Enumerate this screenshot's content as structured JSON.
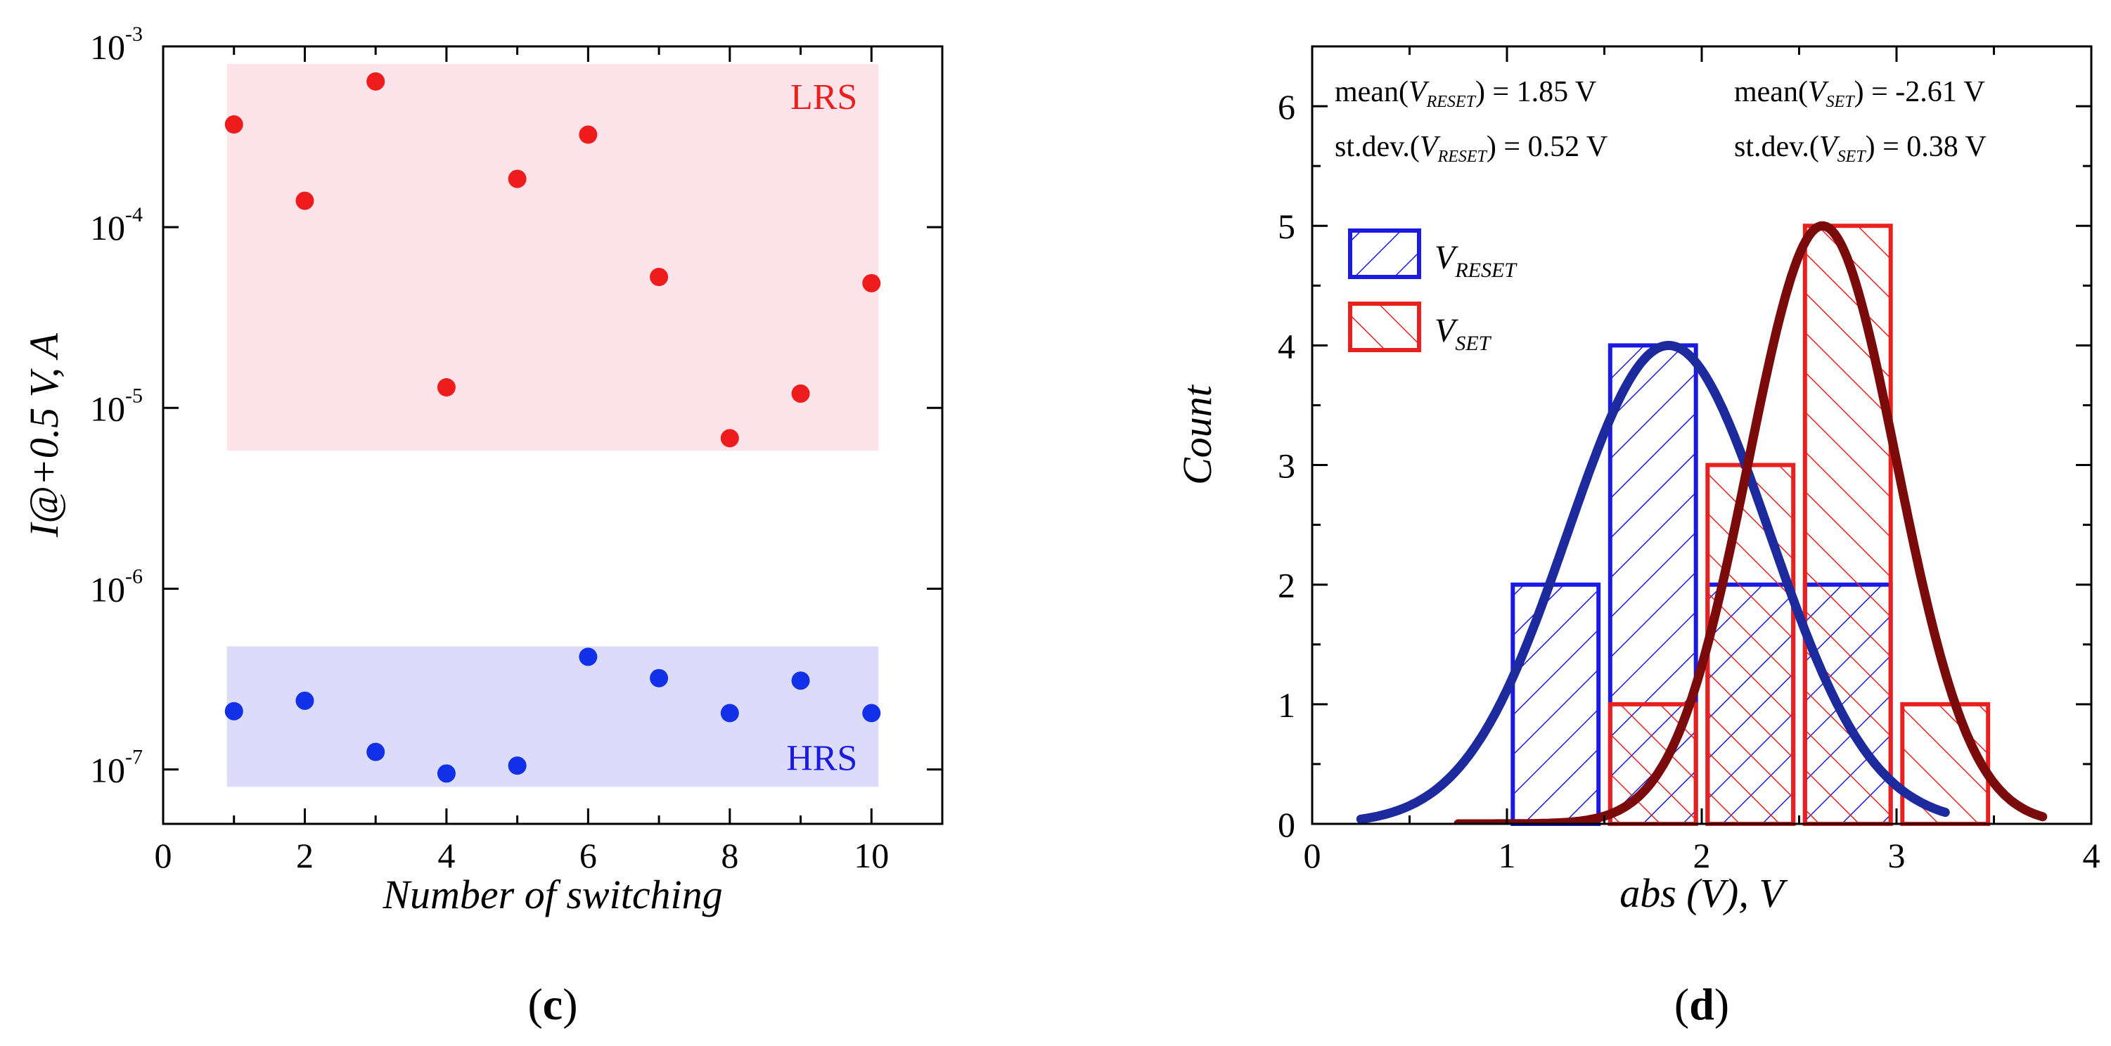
{
  "chart_data": [
    {
      "type": "scatter",
      "panel_label_open": "(",
      "panel_label_letter": "c",
      "panel_label_close": ")",
      "xlabel": "Number of switching",
      "ylabel": "I@+0.5 V, A",
      "xlim": [
        0,
        11
      ],
      "ylim": [
        5e-08,
        0.001
      ],
      "yscale": "log",
      "xticks": [
        "0",
        "2",
        "4",
        "6",
        "8",
        "10"
      ],
      "yticks": [
        {
          "base": "10",
          "exp": "-7"
        },
        {
          "base": "10",
          "exp": "-6"
        },
        {
          "base": "10",
          "exp": "-5"
        },
        {
          "base": "10",
          "exp": "-4"
        },
        {
          "base": "10",
          "exp": "-3"
        }
      ],
      "regions": [
        {
          "name": "LRS",
          "label": "LRS",
          "x_range": [
            0.9,
            10.1
          ],
          "y_range": [
            5.8e-06,
            0.0008
          ],
          "color": "#fde4ea",
          "label_color": "#e8211f"
        },
        {
          "name": "HRS",
          "label": "HRS",
          "x_range": [
            0.9,
            10.1
          ],
          "y_range": [
            8e-08,
            4.8e-07
          ],
          "color": "#dcdcfa",
          "label_color": "#1a1ae0"
        }
      ],
      "series": [
        {
          "name": "LRS",
          "color": "#ee1c1c",
          "x": [
            1,
            2,
            3,
            4,
            5,
            6,
            7,
            8,
            9,
            10
          ],
          "values": [
            0.00037,
            0.00014,
            0.00064,
            1.3e-05,
            0.000185,
            0.000325,
            5.3e-05,
            6.8e-06,
            1.2e-05,
            4.9e-05
          ]
        },
        {
          "name": "HRS",
          "color": "#1230e8",
          "x": [
            1,
            2,
            3,
            4,
            5,
            6,
            7,
            8,
            9,
            10
          ],
          "values": [
            2.1e-07,
            2.4e-07,
            1.25e-07,
            9.5e-08,
            1.05e-07,
            4.2e-07,
            3.2e-07,
            2.05e-07,
            3.1e-07,
            2.05e-07
          ]
        }
      ]
    },
    {
      "type": "bar",
      "panel_label_open": "(",
      "panel_label_letter": "d",
      "panel_label_close": ")",
      "xlabel": "abs (V), V",
      "ylabel": "Count",
      "xlim": [
        0,
        4
      ],
      "ylim": [
        0,
        6.5
      ],
      "xticks": [
        "0",
        "1",
        "2",
        "3",
        "4"
      ],
      "yticks": [
        "0",
        "1",
        "2",
        "3",
        "4",
        "5",
        "6"
      ],
      "bin_width": 0.5,
      "series": [
        {
          "name": "V_RESET",
          "legend_main": "V",
          "legend_sub": "RESET",
          "color": "#1a1ae0",
          "bin_starts": [
            1.0,
            1.5,
            2.0,
            2.5
          ],
          "values": [
            2,
            4,
            2,
            2
          ],
          "fit": {
            "mean": 1.83,
            "sigma": 0.52,
            "amplitude": 4.0,
            "x_range": [
              0.25,
              3.25
            ],
            "color": "#1d2a9e"
          }
        },
        {
          "name": "V_SET",
          "legend_main": "V",
          "legend_sub": "SET",
          "color": "#e8211f",
          "bin_starts": [
            1.5,
            2.0,
            2.5,
            3.0
          ],
          "values": [
            1,
            3,
            5,
            1
          ],
          "fit": {
            "mean": 2.62,
            "sigma": 0.38,
            "amplitude": 5.0,
            "x_range": [
              0.75,
              3.75
            ],
            "color": "#7b0a0a"
          }
        }
      ],
      "annotations": [
        {
          "pre": "mean(",
          "var": "V",
          "sub": "RESET",
          "post": ") = 1.85 V"
        },
        {
          "pre": "mean(",
          "var": "V",
          "sub": "SET",
          "post": ") = -2.61 V"
        },
        {
          "pre": "st.dev.(",
          "var": "V",
          "sub": "RESET",
          "post": ") = 0.52 V"
        },
        {
          "pre": "st.dev.(",
          "var": "V",
          "sub": "SET",
          "post": ") = 0.38 V"
        }
      ]
    }
  ]
}
